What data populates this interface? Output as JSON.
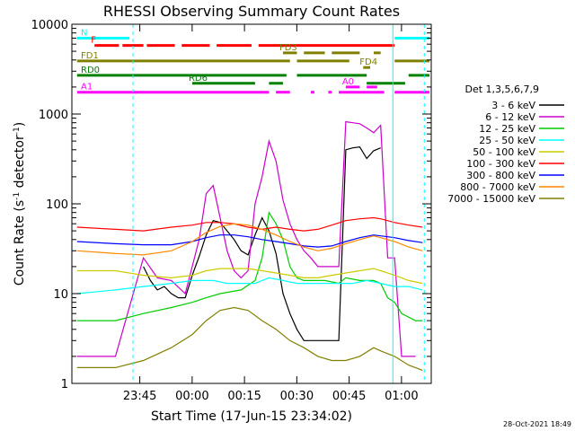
{
  "chart_data": {
    "type": "line",
    "title": "RHESSI Observing Summary Count Rates",
    "xlabel": "Start Time (17-Jun-15 23:34:02)",
    "ylabel_main": "Count Rate (s",
    "ylabel_sup1": "-1",
    "ylabel_mid": " detector",
    "ylabel_sup2": "-1",
    "ylabel_end": ")",
    "yscale": "log",
    "ylim": [
      1,
      10000
    ],
    "xlim": [
      -8.5,
      94.5
    ],
    "x_units": "minutes after 23:34:02",
    "x_ticks": [
      {
        "x": 10.97,
        "label": "23:45"
      },
      {
        "x": 25.97,
        "label": "00:00"
      },
      {
        "x": 40.97,
        "label": "00:15"
      },
      {
        "x": 55.97,
        "label": "00:30"
      },
      {
        "x": 70.97,
        "label": "00:45"
      },
      {
        "x": 85.97,
        "label": "01:00"
      }
    ],
    "y_ticks": [
      {
        "y": 1,
        "label": "1"
      },
      {
        "y": 10,
        "label": "10"
      },
      {
        "y": 100,
        "label": "100"
      },
      {
        "y": 1000,
        "label": "1000"
      },
      {
        "y": 10000,
        "label": "10000"
      }
    ],
    "legend_title": "Det 1,3,5,6,7,9",
    "legend_position": "right",
    "timestamp": "28-Oct-2021 18:49",
    "series": [
      {
        "name": "3 - 6 keV",
        "color": "#000000",
        "points": [
          [
            12,
            20
          ],
          [
            14,
            14
          ],
          [
            16,
            11
          ],
          [
            18,
            12
          ],
          [
            20,
            10
          ],
          [
            22,
            9
          ],
          [
            24,
            9
          ],
          [
            26,
            16
          ],
          [
            28,
            26
          ],
          [
            30,
            45
          ],
          [
            32,
            65
          ],
          [
            34,
            62
          ],
          [
            36,
            50
          ],
          [
            38,
            40
          ],
          [
            40,
            30
          ],
          [
            42,
            27
          ],
          [
            44,
            45
          ],
          [
            46,
            70
          ],
          [
            48,
            50
          ],
          [
            50,
            28
          ],
          [
            52,
            10
          ],
          [
            54,
            6
          ],
          [
            56,
            4
          ],
          [
            58,
            3
          ],
          [
            60,
            3
          ],
          [
            62,
            3
          ],
          [
            64,
            3
          ],
          [
            66,
            3
          ],
          [
            68,
            3
          ],
          [
            70,
            400
          ],
          [
            72,
            420
          ],
          [
            74,
            430
          ],
          [
            76,
            320
          ],
          [
            78,
            390
          ],
          [
            80,
            420
          ]
        ]
      },
      {
        "name": "6 - 12 keV",
        "color": "#cc00cc",
        "points": [
          [
            -7,
            2
          ],
          [
            4,
            2
          ],
          [
            12,
            25
          ],
          [
            16,
            15
          ],
          [
            20,
            14
          ],
          [
            24,
            10
          ],
          [
            28,
            40
          ],
          [
            30,
            130
          ],
          [
            32,
            160
          ],
          [
            34,
            70
          ],
          [
            36,
            30
          ],
          [
            38,
            18
          ],
          [
            40,
            15
          ],
          [
            42,
            18
          ],
          [
            44,
            100
          ],
          [
            46,
            200
          ],
          [
            48,
            500
          ],
          [
            50,
            300
          ],
          [
            52,
            110
          ],
          [
            54,
            60
          ],
          [
            56,
            40
          ],
          [
            58,
            30
          ],
          [
            60,
            25
          ],
          [
            62,
            20
          ],
          [
            64,
            20
          ],
          [
            66,
            20
          ],
          [
            68,
            20
          ],
          [
            70,
            820
          ],
          [
            72,
            800
          ],
          [
            74,
            780
          ],
          [
            76,
            700
          ],
          [
            78,
            620
          ],
          [
            80,
            750
          ],
          [
            82,
            25
          ],
          [
            84,
            25
          ],
          [
            86,
            2
          ],
          [
            88,
            2
          ],
          [
            90,
            2
          ]
        ]
      },
      {
        "name": "12 - 25 keV",
        "color": "#00cc00",
        "points": [
          [
            -7,
            5
          ],
          [
            4,
            5
          ],
          [
            12,
            6
          ],
          [
            20,
            7
          ],
          [
            26,
            8
          ],
          [
            30,
            9
          ],
          [
            34,
            10
          ],
          [
            40,
            11
          ],
          [
            44,
            14
          ],
          [
            46,
            25
          ],
          [
            48,
            80
          ],
          [
            50,
            60
          ],
          [
            52,
            40
          ],
          [
            54,
            20
          ],
          [
            56,
            15
          ],
          [
            58,
            14
          ],
          [
            60,
            14
          ],
          [
            64,
            14
          ],
          [
            68,
            13
          ],
          [
            70,
            15
          ],
          [
            74,
            14
          ],
          [
            78,
            14
          ],
          [
            80,
            13
          ],
          [
            82,
            9
          ],
          [
            84,
            8
          ],
          [
            86,
            6
          ],
          [
            90,
            5
          ],
          [
            92,
            5
          ]
        ]
      },
      {
        "name": "25 - 50 keV",
        "color": "#00ffff",
        "points": [
          [
            -7,
            10
          ],
          [
            4,
            11
          ],
          [
            12,
            12
          ],
          [
            20,
            13
          ],
          [
            26,
            14
          ],
          [
            32,
            14
          ],
          [
            36,
            13
          ],
          [
            40,
            13
          ],
          [
            44,
            13
          ],
          [
            46,
            14
          ],
          [
            48,
            15
          ],
          [
            52,
            14
          ],
          [
            56,
            13
          ],
          [
            60,
            13
          ],
          [
            64,
            13
          ],
          [
            68,
            13
          ],
          [
            72,
            13
          ],
          [
            76,
            14
          ],
          [
            80,
            13
          ],
          [
            84,
            12
          ],
          [
            88,
            12
          ],
          [
            92,
            11
          ]
        ]
      },
      {
        "name": "50 - 100 keV",
        "color": "#cccc00",
        "points": [
          [
            -7,
            18
          ],
          [
            4,
            18
          ],
          [
            12,
            16
          ],
          [
            20,
            15
          ],
          [
            26,
            16
          ],
          [
            30,
            18
          ],
          [
            34,
            19
          ],
          [
            38,
            19
          ],
          [
            42,
            19
          ],
          [
            46,
            18
          ],
          [
            50,
            17
          ],
          [
            54,
            16
          ],
          [
            58,
            15
          ],
          [
            62,
            15
          ],
          [
            66,
            16
          ],
          [
            70,
            17
          ],
          [
            74,
            18
          ],
          [
            78,
            19
          ],
          [
            80,
            18
          ],
          [
            84,
            16
          ],
          [
            88,
            14
          ],
          [
            92,
            13
          ]
        ]
      },
      {
        "name": "100 - 300 keV",
        "color": "#ff0000",
        "points": [
          [
            -7,
            55
          ],
          [
            4,
            52
          ],
          [
            12,
            50
          ],
          [
            20,
            55
          ],
          [
            26,
            58
          ],
          [
            30,
            62
          ],
          [
            34,
            62
          ],
          [
            38,
            60
          ],
          [
            42,
            55
          ],
          [
            46,
            52
          ],
          [
            50,
            55
          ],
          [
            54,
            52
          ],
          [
            58,
            50
          ],
          [
            62,
            52
          ],
          [
            66,
            58
          ],
          [
            70,
            65
          ],
          [
            74,
            68
          ],
          [
            78,
            70
          ],
          [
            80,
            68
          ],
          [
            84,
            62
          ],
          [
            88,
            58
          ],
          [
            92,
            55
          ]
        ]
      },
      {
        "name": "300 - 800 keV",
        "color": "#0000ff",
        "points": [
          [
            -7,
            38
          ],
          [
            4,
            36
          ],
          [
            12,
            35
          ],
          [
            20,
            35
          ],
          [
            26,
            38
          ],
          [
            30,
            42
          ],
          [
            34,
            45
          ],
          [
            38,
            45
          ],
          [
            42,
            43
          ],
          [
            46,
            40
          ],
          [
            50,
            38
          ],
          [
            54,
            36
          ],
          [
            58,
            34
          ],
          [
            62,
            33
          ],
          [
            66,
            34
          ],
          [
            70,
            38
          ],
          [
            74,
            42
          ],
          [
            78,
            45
          ],
          [
            80,
            44
          ],
          [
            84,
            42
          ],
          [
            88,
            39
          ],
          [
            92,
            37
          ]
        ]
      },
      {
        "name": "800 - 7000 keV",
        "color": "#ff8800",
        "points": [
          [
            -7,
            30
          ],
          [
            4,
            28
          ],
          [
            12,
            27
          ],
          [
            20,
            30
          ],
          [
            26,
            38
          ],
          [
            30,
            48
          ],
          [
            34,
            56
          ],
          [
            38,
            60
          ],
          [
            42,
            58
          ],
          [
            46,
            52
          ],
          [
            50,
            45
          ],
          [
            54,
            38
          ],
          [
            58,
            33
          ],
          [
            62,
            30
          ],
          [
            66,
            32
          ],
          [
            70,
            36
          ],
          [
            74,
            40
          ],
          [
            78,
            44
          ],
          [
            80,
            42
          ],
          [
            84,
            38
          ],
          [
            88,
            33
          ],
          [
            92,
            30
          ]
        ]
      },
      {
        "name": "7000 - 15000 keV",
        "color": "#808000",
        "points": [
          [
            -7,
            1.5
          ],
          [
            4,
            1.5
          ],
          [
            12,
            1.8
          ],
          [
            20,
            2.5
          ],
          [
            26,
            3.5
          ],
          [
            30,
            5
          ],
          [
            34,
            6.5
          ],
          [
            38,
            7
          ],
          [
            42,
            6.5
          ],
          [
            46,
            5
          ],
          [
            50,
            4
          ],
          [
            54,
            3
          ],
          [
            58,
            2.5
          ],
          [
            62,
            2
          ],
          [
            66,
            1.8
          ],
          [
            70,
            1.8
          ],
          [
            74,
            2
          ],
          [
            78,
            2.5
          ],
          [
            80,
            2.3
          ],
          [
            84,
            2
          ],
          [
            88,
            1.6
          ],
          [
            92,
            1.4
          ]
        ]
      }
    ],
    "annotations": [
      {
        "label": "N",
        "color": "#00ffff",
        "y": 7000,
        "segments": [
          [
            -7,
            8
          ],
          [
            84,
            94
          ]
        ]
      },
      {
        "label": "F",
        "color": "#ff0000",
        "y": 5800,
        "segments": [
          [
            -2,
            5
          ],
          [
            6,
            12
          ],
          [
            13,
            21
          ],
          [
            23,
            31
          ],
          [
            33,
            43
          ],
          [
            45,
            84
          ]
        ]
      },
      {
        "label": "FD1",
        "color": "#808000",
        "y": 3900,
        "segments": [
          [
            -7,
            54
          ],
          [
            56,
            71
          ],
          [
            84,
            94
          ]
        ]
      },
      {
        "label": "FD3",
        "color": "#808000",
        "y": 4800,
        "segments": [
          [
            52,
            56
          ],
          [
            58,
            64
          ],
          [
            66,
            74
          ],
          [
            78,
            80
          ]
        ]
      },
      {
        "label": "FD4",
        "color": "#808000",
        "y": 3300,
        "segments": [
          [
            75,
            77
          ]
        ]
      },
      {
        "label": "RD0",
        "color": "#008000",
        "y": 2700,
        "segments": [
          [
            -7,
            53
          ],
          [
            56,
            76
          ],
          [
            88,
            94
          ]
        ]
      },
      {
        "label": "RD6",
        "color": "#008000",
        "y": 2200,
        "segments": [
          [
            26,
            44
          ],
          [
            48,
            52
          ],
          [
            76,
            87
          ]
        ]
      },
      {
        "label": "A1",
        "color": "#ff00ff",
        "y": 1750,
        "segments": [
          [
            -7,
            48
          ],
          [
            50,
            54
          ],
          [
            60,
            61
          ],
          [
            65,
            66
          ],
          [
            68,
            81
          ],
          [
            84,
            94
          ]
        ]
      },
      {
        "label": "A0",
        "color": "#ff00ff",
        "y": 2000,
        "segments": [
          [
            70,
            74
          ],
          [
            76,
            79
          ]
        ]
      }
    ],
    "vertical_markers": [
      {
        "x": 9,
        "color": "#00ffff",
        "style": "dashed"
      },
      {
        "x": 83.5,
        "color": "#00ffff",
        "style": "solid"
      },
      {
        "x": 92.5,
        "color": "#00ffff",
        "style": "dashed"
      }
    ]
  }
}
